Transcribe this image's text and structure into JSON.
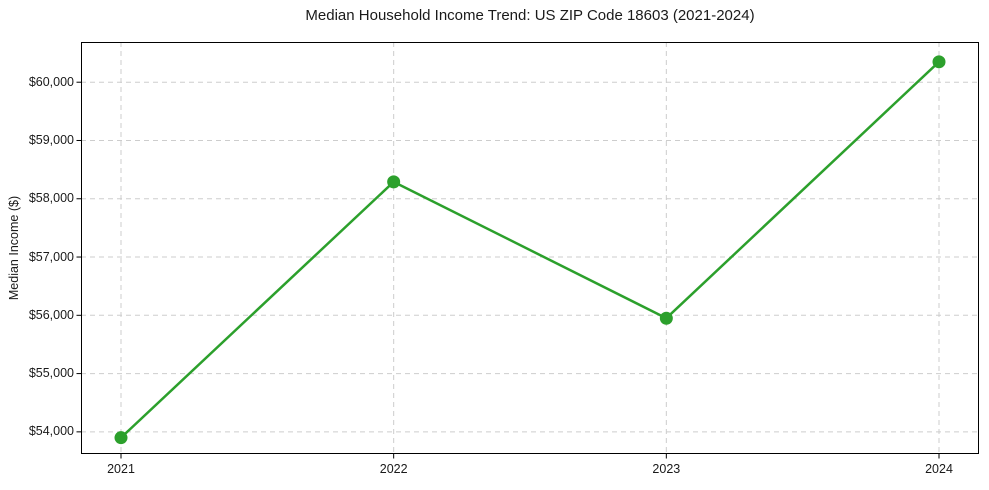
{
  "figure": {
    "background": "#ffffff"
  },
  "chart_data": {
    "type": "line",
    "title": "Median Household Income Trend: US ZIP Code 18603 (2021-2024)",
    "xlabel": "",
    "ylabel": "Median Income ($)",
    "categories": [
      "2021",
      "2022",
      "2023",
      "2024"
    ],
    "values": [
      53900,
      58290,
      55950,
      60350
    ],
    "y_ticks": [
      54000,
      55000,
      56000,
      57000,
      58000,
      59000,
      60000
    ],
    "y_tick_labels": [
      "$54,000",
      "$55,000",
      "$56,000",
      "$57,000",
      "$58,000",
      "$59,000",
      "$60,000"
    ],
    "ylim": [
      53620,
      60690
    ],
    "grid": true,
    "grid_style": "dashed",
    "legend_position": "none",
    "line_color": "#2ca02c",
    "marker": "circle",
    "marker_color": "#2ca02c",
    "grid_color": "#cdcdcd",
    "axis_color": "#000000",
    "text_color": "#1a1a1a"
  }
}
